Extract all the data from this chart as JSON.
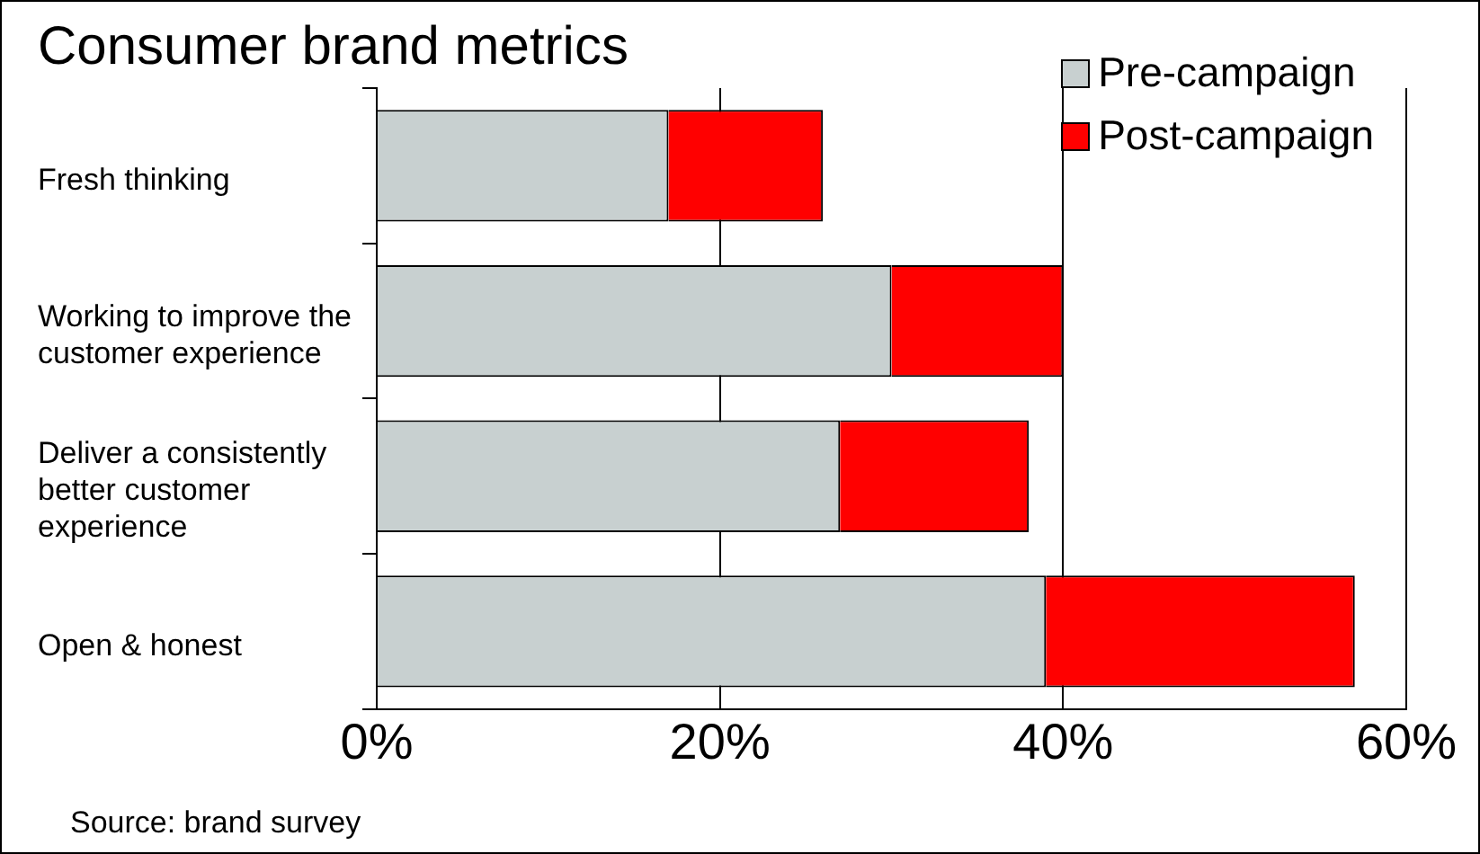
{
  "chart_data": {
    "type": "bar",
    "orientation": "horizontal",
    "stacked": true,
    "title": "Consumer brand metrics",
    "categories": [
      "Fresh thinking",
      "Working to improve the customer experience",
      "Deliver a consistently better customer experience",
      "Open & honest"
    ],
    "series": [
      {
        "name": "Pre-campaign",
        "color": "#c8d0d0",
        "values": [
          17,
          30,
          27,
          39
        ]
      },
      {
        "name": "Post-campaign",
        "color": "#ff0000",
        "values": [
          9,
          10,
          11,
          18
        ]
      }
    ],
    "xlim": [
      0,
      60
    ],
    "xticks": [
      {
        "value": 0,
        "label": "0%"
      },
      {
        "value": 20,
        "label": "20%"
      },
      {
        "value": 40,
        "label": "40%"
      },
      {
        "value": 60,
        "label": "60%"
      }
    ],
    "grid": "x",
    "legend": "top right",
    "annotations": [
      "Source: brand survey"
    ]
  }
}
